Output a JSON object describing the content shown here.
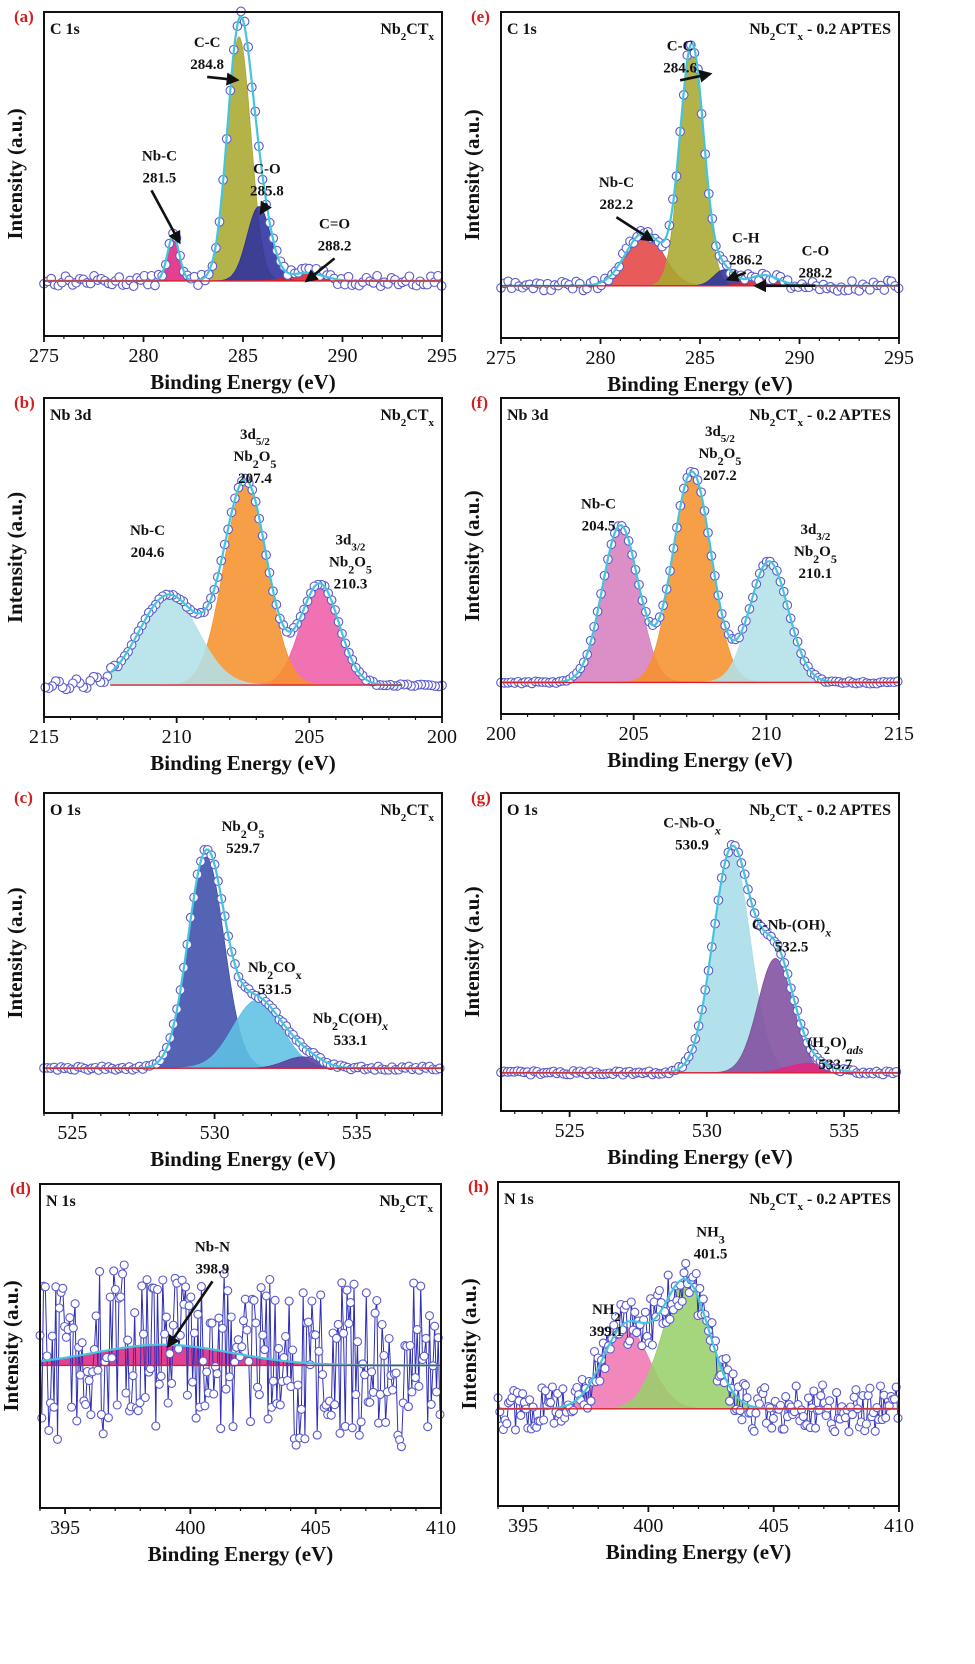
{
  "figure": {
    "x_axis_title": "Binding Energy (eV)",
    "y_axis_title": "Intensity (a.u.)"
  },
  "chart_data": [
    {
      "type": "area",
      "panel": "(a)",
      "core_level": "C 1s",
      "sample": "Nb2CTx",
      "sample_sub": "x",
      "xlim": [
        275,
        295
      ],
      "xticks": [
        275,
        280,
        285,
        290,
        295
      ],
      "reverse_x": false,
      "xlabel": "Binding Energy (eV)",
      "ylabel": "Intensity (a.u.)",
      "peaks": [
        {
          "name": "Nb-C",
          "label_lines": [
            "Nb-C",
            "281.5"
          ],
          "center": 281.5,
          "height": 0.17,
          "fwhm": 0.7,
          "color": "#e0267f"
        },
        {
          "name": "C-C",
          "label_lines": [
            "C-C",
            "284.8"
          ],
          "center": 284.8,
          "height": 0.92,
          "fwhm": 1.4,
          "color": "#a8a830"
        },
        {
          "name": "C-O",
          "label_lines": [
            "C-O",
            "285.8"
          ],
          "center": 285.8,
          "height": 0.28,
          "fwhm": 1.4,
          "color": "#2c2f9e"
        },
        {
          "name": "C=O",
          "label_lines": [
            "C=O",
            "288.2"
          ],
          "center": 288.2,
          "height": 0.03,
          "fwhm": 2.0,
          "color": "#d8202a"
        }
      ]
    },
    {
      "type": "area",
      "panel": "(e)",
      "core_level": "C 1s",
      "sample": "Nb2CTx - 0.2 APTES",
      "sample_sub": "x",
      "xlim": [
        275,
        295
      ],
      "xticks": [
        275,
        280,
        285,
        290,
        295
      ],
      "reverse_x": false,
      "xlabel": "Binding Energy (eV)",
      "ylabel": "Intensity (a.u.)",
      "peaks": [
        {
          "name": "Nb-C",
          "label_lines": [
            "Nb-C",
            "282.2"
          ],
          "center": 282.2,
          "height": 0.2,
          "fwhm": 2.2,
          "color": "#e44444"
        },
        {
          "name": "C-C",
          "label_lines": [
            "C-C",
            "284.6"
          ],
          "center": 284.6,
          "height": 0.9,
          "fwhm": 1.4,
          "color": "#a8a830"
        },
        {
          "name": "C-H",
          "label_lines": [
            "C-H",
            "286.2"
          ],
          "center": 286.2,
          "height": 0.06,
          "fwhm": 1.2,
          "color": "#2c2f9e"
        },
        {
          "name": "C-O",
          "label_lines": [
            "C-O",
            "288.2"
          ],
          "center": 288.2,
          "height": 0.04,
          "fwhm": 1.8,
          "color": "#d8202a"
        }
      ]
    },
    {
      "type": "area",
      "panel": "(b)",
      "core_level": "Nb 3d",
      "sample": "Nb2CTx",
      "sample_sub": "x",
      "xlim": [
        200,
        215
      ],
      "xticks": [
        200,
        205,
        210,
        215
      ],
      "reverse_x": true,
      "xlabel": "Binding Energy (eV)",
      "ylabel": "Intensity (a.u.)",
      "peaks": [
        {
          "name": "Nb-C",
          "label_lines": [
            "Nb-C",
            "204.6"
          ],
          "center": 204.6,
          "height": 0.46,
          "fwhm": 1.7,
          "color": "#ef5fa7"
        },
        {
          "name": "3d5/2 Nb2O5",
          "label_lines": [
            "3d5/2",
            "Nb2O5",
            "207.4"
          ],
          "center": 207.4,
          "height": 0.92,
          "fwhm": 1.9,
          "color": "#f6922e"
        },
        {
          "name": "3d3/2 Nb2O5",
          "label_lines": [
            "3d3/2",
            "Nb2O5",
            "210.3"
          ],
          "center": 210.3,
          "height": 0.41,
          "fwhm": 2.6,
          "color": "#b3e0e8"
        }
      ]
    },
    {
      "type": "area",
      "panel": "(f)",
      "core_level": "Nb 3d",
      "sample": "Nb2CTx - 0.2 APTES",
      "sample_sub": "x",
      "xlim": [
        200,
        215
      ],
      "xticks": [
        200,
        205,
        210,
        215
      ],
      "reverse_x": false,
      "xlabel": "Binding Energy (eV)",
      "ylabel": "Intensity (a.u.)",
      "peaks": [
        {
          "name": "Nb-C",
          "label_lines": [
            "Nb-C",
            "204.5"
          ],
          "center": 204.5,
          "height": 0.7,
          "fwhm": 1.6,
          "color": "#d77fbf"
        },
        {
          "name": "3d5/2 Nb2O5",
          "label_lines": [
            "3d5/2",
            "Nb2O5",
            "207.2"
          ],
          "center": 207.2,
          "height": 0.94,
          "fwhm": 1.7,
          "color": "#f6922e"
        },
        {
          "name": "3d3/2 Nb2O5",
          "label_lines": [
            "3d3/2",
            "Nb2O5",
            "210.1"
          ],
          "center": 210.1,
          "height": 0.54,
          "fwhm": 1.7,
          "color": "#b3e0e8"
        }
      ]
    },
    {
      "type": "area",
      "panel": "(c)",
      "core_level": "O 1s",
      "sample": "Nb2CTx",
      "sample_sub": "x",
      "xlim": [
        524,
        538
      ],
      "xticks": [
        525,
        530,
        535
      ],
      "reverse_x": false,
      "xlabel": "Binding Energy (eV)",
      "ylabel": "Intensity (a.u.)",
      "peaks": [
        {
          "name": "Nb2O5",
          "label_lines": [
            "Nb2O5",
            "529.7"
          ],
          "center": 529.7,
          "height": 0.93,
          "fwhm": 1.5,
          "color": "#3d4dab"
        },
        {
          "name": "Nb2COx",
          "label_lines": [
            "Nb2COx",
            "531.5"
          ],
          "center": 531.5,
          "height": 0.3,
          "fwhm": 2.0,
          "color": "#5ec1e4"
        },
        {
          "name": "Nb2C(OH)x",
          "label_lines": [
            "Nb2C(OH)x",
            "533.1"
          ],
          "center": 533.1,
          "height": 0.05,
          "fwhm": 1.5,
          "color": "#5b3c9c"
        }
      ]
    },
    {
      "type": "area",
      "panel": "(g)",
      "core_level": "O 1s",
      "sample": "Nb2CTx - 0.2 APTES",
      "sample_sub": "x",
      "xlim": [
        522.5,
        537
      ],
      "xticks": [
        525,
        530,
        535
      ],
      "reverse_x": false,
      "xlabel": "Binding Energy (eV)",
      "ylabel": "Intensity (a.u.)",
      "peaks": [
        {
          "name": "C-Nb-Ox",
          "label_lines": [
            "C-Nb-Ox",
            "530.9"
          ],
          "center": 530.9,
          "height": 0.93,
          "fwhm": 1.6,
          "color": "#a9dde8"
        },
        {
          "name": "C-Nb-(OH)x",
          "label_lines": [
            "C-Nb-(OH)x",
            "532.5"
          ],
          "center": 532.5,
          "height": 0.48,
          "fwhm": 1.5,
          "color": "#7f4f9f"
        },
        {
          "name": "(H2O)ads",
          "label_lines": [
            "(H2O)ads",
            "533.7"
          ],
          "center": 533.7,
          "height": 0.04,
          "fwhm": 1.8,
          "color": "#e0267f"
        }
      ]
    },
    {
      "type": "area",
      "panel": "(d)",
      "core_level": "N 1s",
      "sample": "Nb2CTx",
      "sample_sub": "x",
      "xlim": [
        394,
        410
      ],
      "xticks": [
        395,
        400,
        405,
        410
      ],
      "reverse_x": false,
      "xlabel": "Binding Energy (eV)",
      "ylabel": "Intensity (a.u.)",
      "peaks": [
        {
          "name": "Nb-N",
          "label_lines": [
            "Nb-N",
            "398.9"
          ],
          "center": 398.9,
          "height": 0.08,
          "fwhm": 6.5,
          "color": "#e0267f"
        }
      ]
    },
    {
      "type": "area",
      "panel": "(h)",
      "core_level": "N 1s",
      "sample": "Nb2CTx - 0.2 APTES",
      "sample_sub": "x",
      "xlim": [
        394,
        410
      ],
      "xticks": [
        395,
        400,
        405,
        410
      ],
      "reverse_x": false,
      "xlabel": "Binding Energy (eV)",
      "ylabel": "Intensity (a.u.)",
      "peaks": [
        {
          "name": "NH2",
          "label_lines": [
            "NH2",
            "399.1"
          ],
          "center": 399.1,
          "height": 0.4,
          "fwhm": 2.2,
          "color": "#ef76b2"
        },
        {
          "name": "NH3",
          "label_lines": [
            "NH3",
            "401.5"
          ],
          "center": 401.5,
          "height": 0.62,
          "fwhm": 2.2,
          "color": "#98cf6b"
        }
      ]
    }
  ]
}
